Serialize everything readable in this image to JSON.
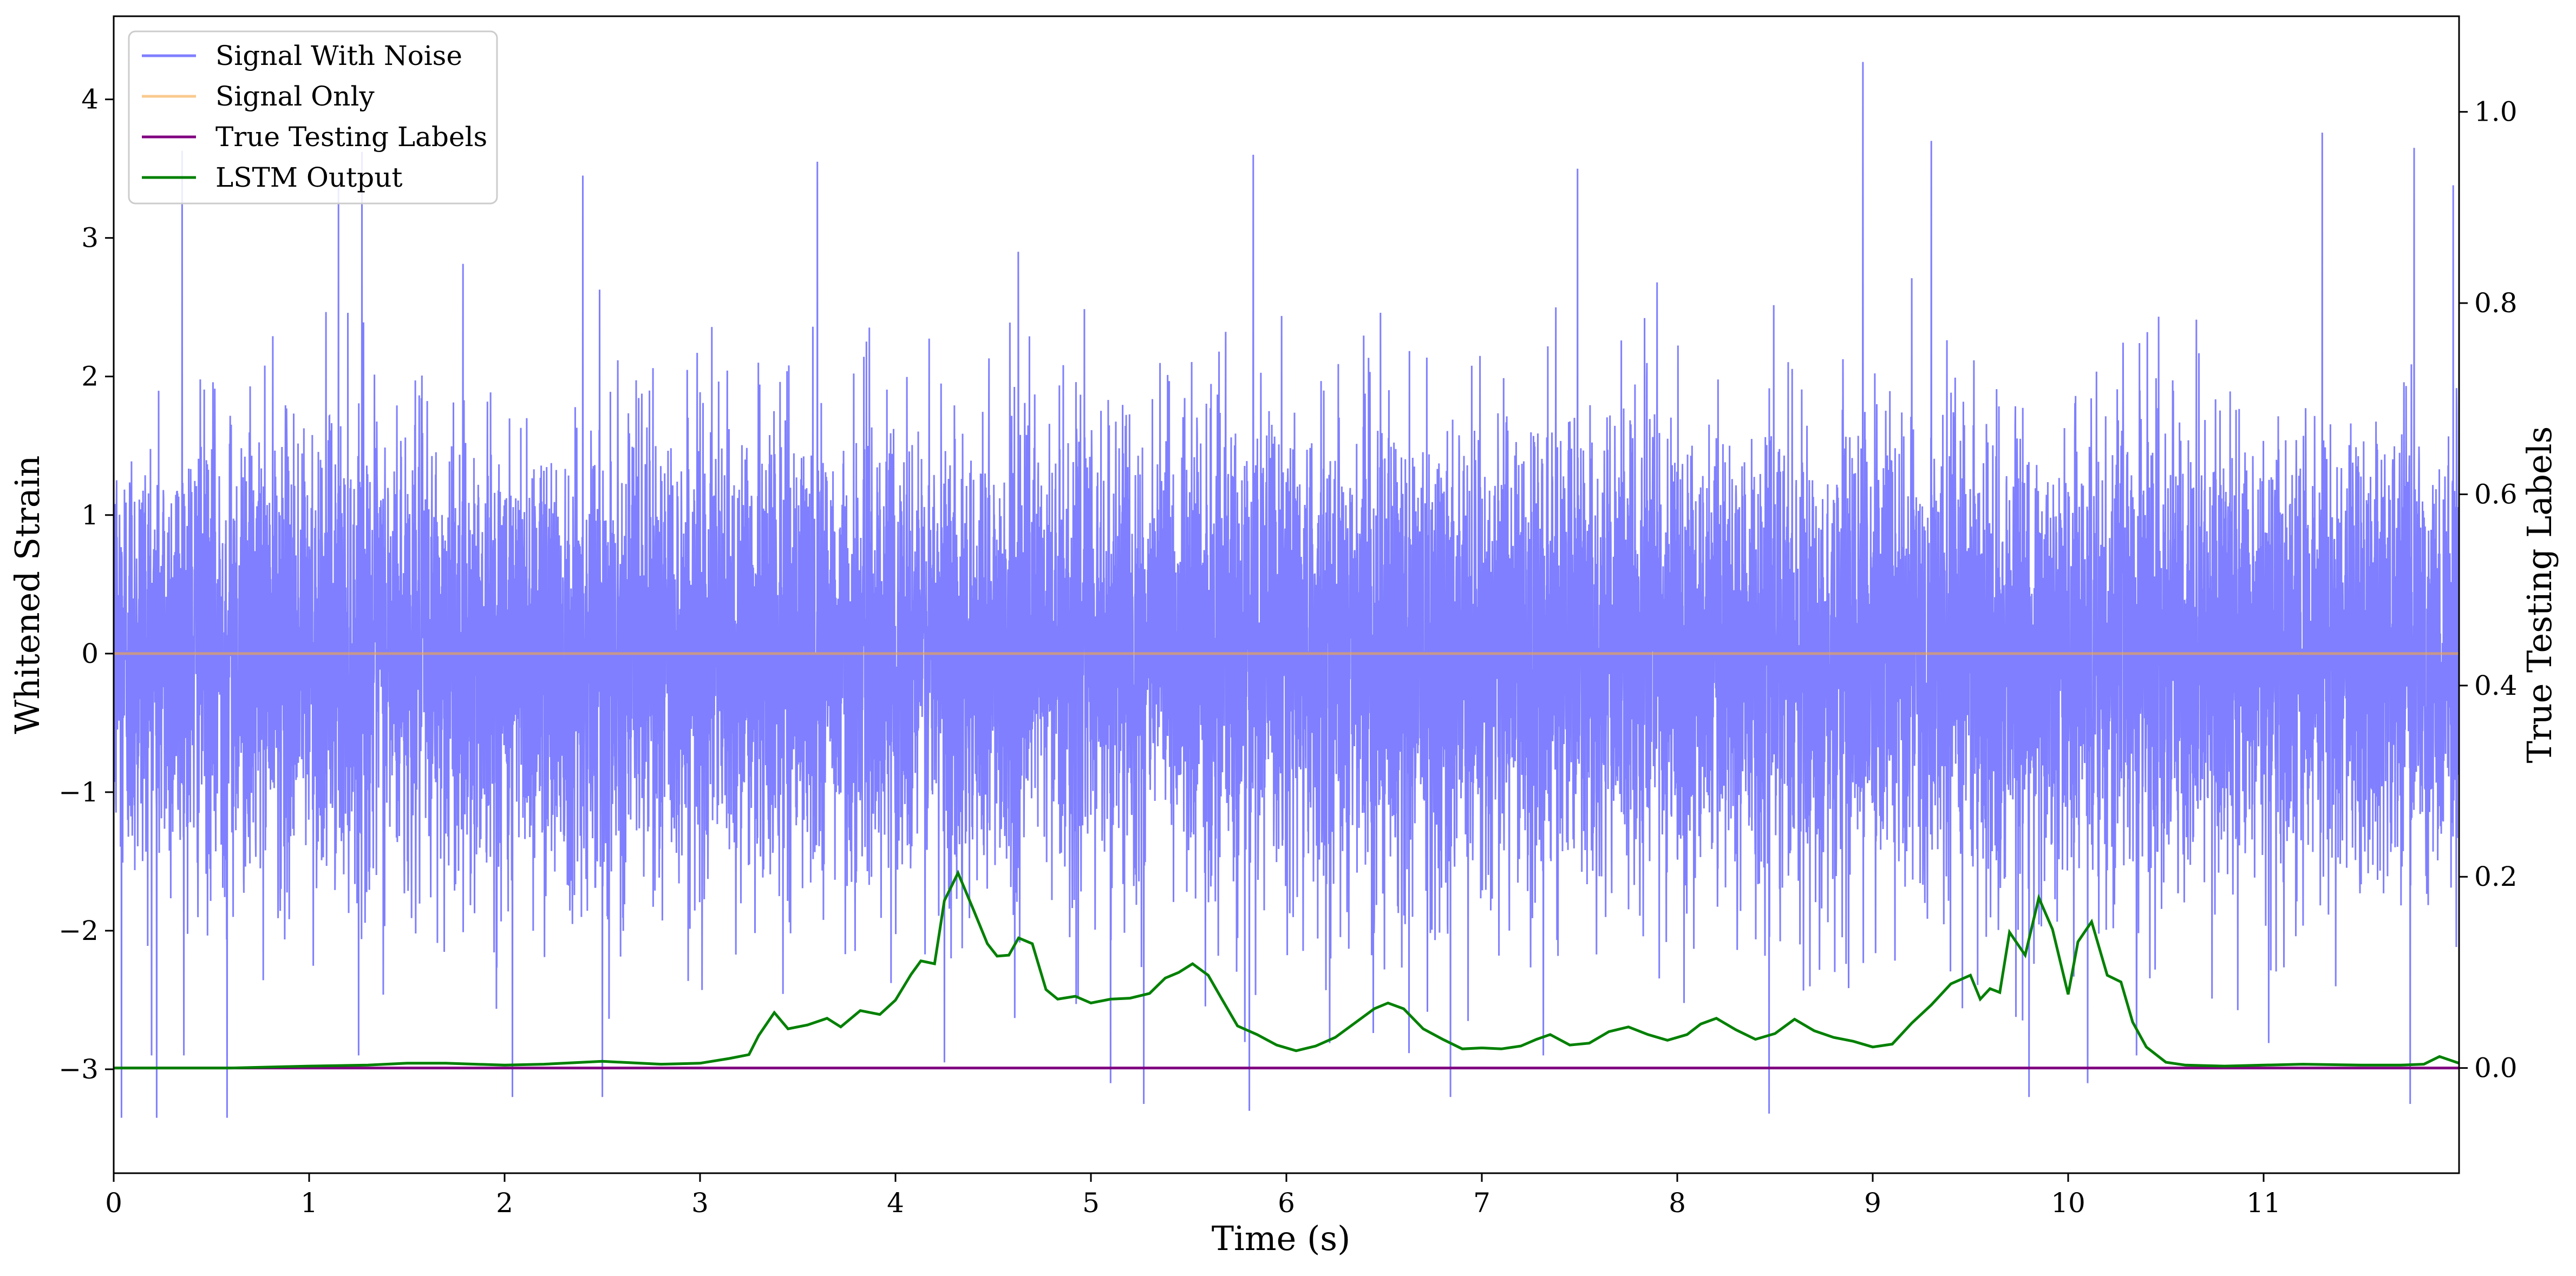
{
  "chart_data": {
    "type": "line",
    "xlabel": "Time (s)",
    "ylabel_left": "Whitened Strain",
    "ylabel_right": "True Testing Labels",
    "xlim": [
      0,
      12
    ],
    "ylim_left": [
      -3.75,
      4.6
    ],
    "ylim_right": [
      -0.11,
      1.1
    ],
    "x_ticks": [
      0,
      1,
      2,
      3,
      4,
      5,
      6,
      7,
      8,
      9,
      10,
      11
    ],
    "x_tick_labels": [
      "0",
      "1",
      "2",
      "3",
      "4",
      "5",
      "6",
      "7",
      "8",
      "9",
      "10",
      "11"
    ],
    "y_left_ticks": [
      -3,
      -2,
      -1,
      0,
      1,
      2,
      3,
      4
    ],
    "y_left_tick_labels": [
      "−3",
      "−2",
      "−1",
      "0",
      "1",
      "2",
      "3",
      "4"
    ],
    "y_right_ticks": [
      0.0,
      0.2,
      0.4,
      0.6,
      0.8,
      1.0
    ],
    "y_right_tick_labels": [
      "0.0",
      "0.2",
      "0.4",
      "0.6",
      "0.8",
      "1.0"
    ],
    "grid": false,
    "legend_position": "top-left",
    "legend": [
      "Signal With Noise",
      "Signal Only",
      "True Testing Labels",
      "LSTM Output"
    ],
    "series": [
      {
        "name": "Signal With Noise",
        "axis": "left",
        "color": "#7f7fff",
        "note": "dense noisy strain, approx. normal, envelope mostly within [-2.5, 2.5] with spikes",
        "samples": 12000,
        "spikes": [
          {
            "x": 0.04,
            "y": -3.35
          },
          {
            "x": 0.22,
            "y": -3.35
          },
          {
            "x": 0.35,
            "y": 3.63
          },
          {
            "x": 0.58,
            "y": -3.35
          },
          {
            "x": 1.15,
            "y": 3.38
          },
          {
            "x": 1.27,
            "y": 3.62
          },
          {
            "x": 2.04,
            "y": -3.2
          },
          {
            "x": 2.4,
            "y": 3.45
          },
          {
            "x": 2.5,
            "y": -3.2
          },
          {
            "x": 3.6,
            "y": 3.55
          },
          {
            "x": 4.25,
            "y": -2.95
          },
          {
            "x": 5.1,
            "y": -3.1
          },
          {
            "x": 5.27,
            "y": -3.25
          },
          {
            "x": 5.83,
            "y": 3.6
          },
          {
            "x": 5.81,
            "y": -3.3
          },
          {
            "x": 6.84,
            "y": -3.2
          },
          {
            "x": 7.49,
            "y": 3.5
          },
          {
            "x": 8.47,
            "y": -3.32
          },
          {
            "x": 8.95,
            "y": 4.27
          },
          {
            "x": 9.3,
            "y": 3.7
          },
          {
            "x": 9.8,
            "y": -3.2
          },
          {
            "x": 10.1,
            "y": -3.1
          },
          {
            "x": 11.3,
            "y": 3.76
          },
          {
            "x": 11.77,
            "y": 3.65
          },
          {
            "x": 11.75,
            "y": -3.25
          },
          {
            "x": 11.97,
            "y": 3.38
          }
        ]
      },
      {
        "name": "Signal Only",
        "axis": "left",
        "color": "#f5a742",
        "x": [
          0,
          12
        ],
        "y": [
          0,
          0
        ]
      },
      {
        "name": "True Testing Labels",
        "axis": "right",
        "color": "#800080",
        "x": [
          0,
          12
        ],
        "y": [
          0,
          0
        ]
      },
      {
        "name": "LSTM Output",
        "axis": "right",
        "color": "#008000",
        "x": [
          0.0,
          0.3,
          0.6,
          1.0,
          1.3,
          1.5,
          1.7,
          2.0,
          2.2,
          2.5,
          2.8,
          3.0,
          3.15,
          3.25,
          3.3,
          3.38,
          3.45,
          3.55,
          3.65,
          3.72,
          3.82,
          3.92,
          4.0,
          4.08,
          4.13,
          4.2,
          4.25,
          4.32,
          4.4,
          4.47,
          4.52,
          4.58,
          4.63,
          4.7,
          4.77,
          4.83,
          4.92,
          5.0,
          5.1,
          5.2,
          5.3,
          5.38,
          5.45,
          5.52,
          5.6,
          5.67,
          5.75,
          5.85,
          5.95,
          6.05,
          6.15,
          6.25,
          6.35,
          6.45,
          6.52,
          6.6,
          6.7,
          6.8,
          6.9,
          7.0,
          7.1,
          7.2,
          7.28,
          7.35,
          7.45,
          7.55,
          7.65,
          7.75,
          7.85,
          7.95,
          8.05,
          8.12,
          8.2,
          8.3,
          8.4,
          8.5,
          8.6,
          8.7,
          8.8,
          8.9,
          9.0,
          9.1,
          9.2,
          9.3,
          9.4,
          9.5,
          9.55,
          9.6,
          9.65,
          9.7,
          9.78,
          9.85,
          9.92,
          10.0,
          10.05,
          10.12,
          10.2,
          10.27,
          10.33,
          10.4,
          10.5,
          10.6,
          10.8,
          11.0,
          11.2,
          11.5,
          11.7,
          11.82,
          11.9,
          12.0
        ],
        "y": [
          0.0,
          0.0,
          0.0,
          0.002,
          0.003,
          0.005,
          0.005,
          0.003,
          0.004,
          0.007,
          0.004,
          0.005,
          0.01,
          0.014,
          0.034,
          0.058,
          0.041,
          0.045,
          0.052,
          0.043,
          0.06,
          0.056,
          0.071,
          0.098,
          0.112,
          0.109,
          0.175,
          0.204,
          0.165,
          0.13,
          0.117,
          0.118,
          0.136,
          0.13,
          0.082,
          0.072,
          0.075,
          0.068,
          0.072,
          0.073,
          0.078,
          0.094,
          0.1,
          0.109,
          0.097,
          0.072,
          0.044,
          0.035,
          0.024,
          0.018,
          0.023,
          0.032,
          0.047,
          0.062,
          0.068,
          0.062,
          0.041,
          0.03,
          0.02,
          0.021,
          0.02,
          0.023,
          0.03,
          0.035,
          0.024,
          0.026,
          0.038,
          0.043,
          0.035,
          0.029,
          0.035,
          0.046,
          0.052,
          0.04,
          0.03,
          0.036,
          0.051,
          0.039,
          0.032,
          0.028,
          0.022,
          0.025,
          0.047,
          0.066,
          0.088,
          0.097,
          0.072,
          0.083,
          0.079,
          0.142,
          0.118,
          0.178,
          0.145,
          0.077,
          0.132,
          0.153,
          0.097,
          0.09,
          0.048,
          0.022,
          0.006,
          0.003,
          0.002,
          0.003,
          0.004,
          0.003,
          0.003,
          0.004,
          0.012,
          0.005
        ]
      }
    ]
  }
}
